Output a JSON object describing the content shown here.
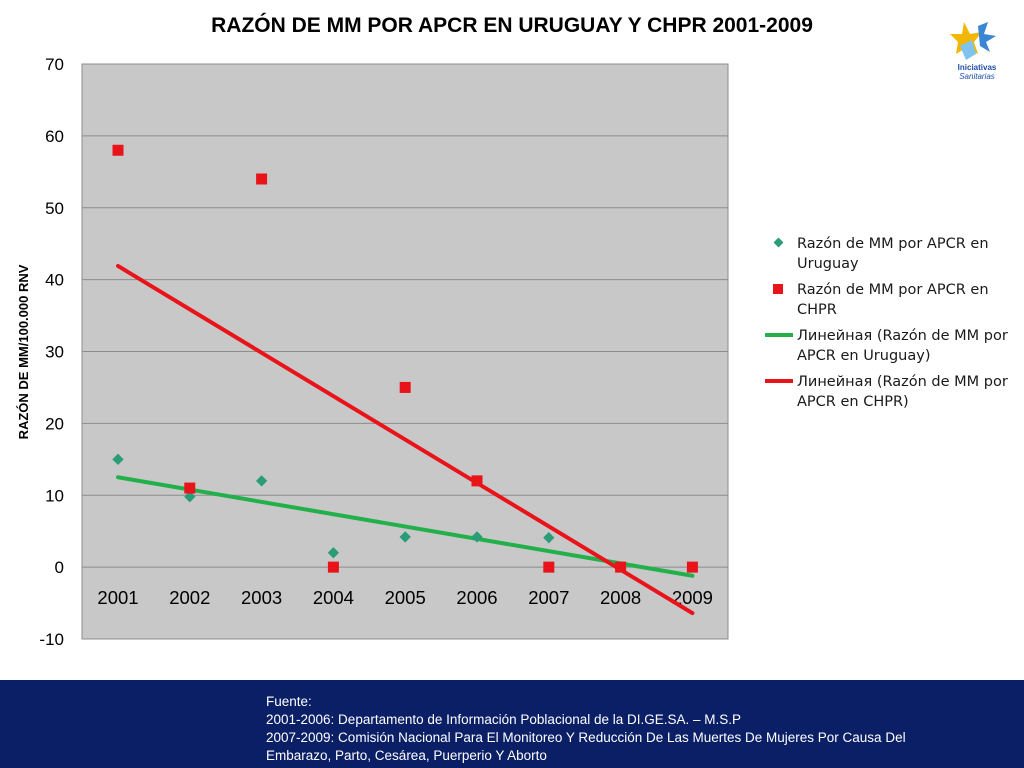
{
  "chart_data": {
    "type": "scatter",
    "title": "RAZÓN DE MM POR APCR EN URUGUAY Y CHPR  2001-2009",
    "ylabel": "RAZÓN DE MM/100.000 RNV",
    "xlabel": "",
    "categories": [
      "2001",
      "2002",
      "2003",
      "2004",
      "2005",
      "2006",
      "2007",
      "2008",
      "2009"
    ],
    "ylim": [
      -10,
      70
    ],
    "yticks": [
      -10,
      0,
      10,
      20,
      30,
      40,
      50,
      60,
      70
    ],
    "grid": true,
    "plot_background": "#c8c8c8",
    "legend_position": "right",
    "series": [
      {
        "name": "Razón de MM por APCR en Uruguay",
        "marker": "diamond",
        "color": "#2a9d78",
        "values": [
          15,
          9.8,
          12,
          2,
          4.2,
          4.2,
          4.1,
          null,
          null
        ]
      },
      {
        "name": "Razón de MM por APCR en CHPR",
        "marker": "square",
        "color": "#e8141a",
        "values": [
          58,
          11,
          54,
          0,
          25,
          12,
          0,
          0,
          0
        ]
      }
    ],
    "trendlines": [
      {
        "name": "Линейная (Razón de MM por APCR en Uruguay)",
        "color": "#22b04a",
        "from": [
          2001,
          12.5
        ],
        "to": [
          2009,
          -1.2
        ]
      },
      {
        "name": "Линейная (Razón de MM por APCR en CHPR)",
        "color": "#e8141a",
        "from": [
          2001,
          41.9
        ],
        "to": [
          2009,
          -6.4
        ]
      }
    ]
  },
  "legend": {
    "items": [
      {
        "line1": "Razón de MM por APCR en",
        "line2": "Uruguay"
      },
      {
        "line1": "Razón de MM por APCR en",
        "line2": "CHPR"
      },
      {
        "line1": "Линейная (Razón de MM por",
        "line2": "APCR en Uruguay)"
      },
      {
        "line1": "Линейная (Razón de MM por",
        "line2": "APCR en CHPR)"
      }
    ]
  },
  "footer": {
    "bg_color": "#0b1f66",
    "lines": [
      "Fuente:",
      "2001-2006: Departamento de Información Poblacional de la DI.GE.SA. – M.S.P",
      "2007-2009: Comisión Nacional Para El Monitoreo Y Reducción De Las Muertes De Mujeres Por Causa Del",
      "Embarazo, Parto, Cesárea, Puerperio Y Aborto"
    ]
  },
  "logo": {
    "icon": "iniciativas-sanitarias-logo",
    "text1": "Iniciativas",
    "text2": "Sanitarias"
  }
}
